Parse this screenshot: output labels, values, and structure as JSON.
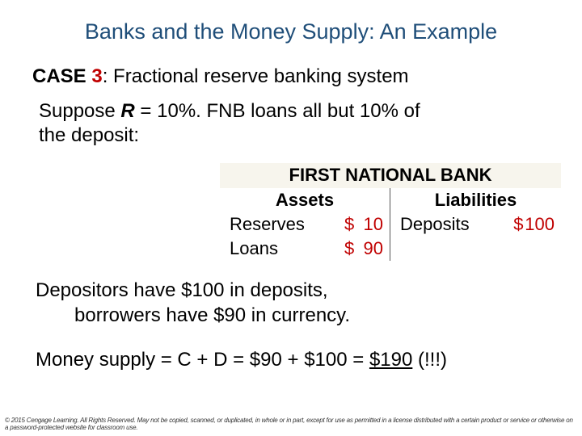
{
  "title": "Banks and the Money Supply: An Example",
  "case": {
    "label": "CASE ",
    "num": "3",
    "colon": ":",
    "desc": "  Fractional reserve banking system"
  },
  "suppose": {
    "pre": "Suppose ",
    "R": "R",
    "post": " = 10%.  FNB loans all but 10% of the deposit:"
  },
  "balance_sheet": {
    "title": "FIRST NATIONAL BANK",
    "assets_head": "Assets",
    "liab_head": "Liabilities",
    "rows": [
      {
        "asset_label": "Reserves",
        "asset_amount": "10",
        "liab_label": "Deposits",
        "liab_amount": "100"
      },
      {
        "asset_label": "Loans",
        "asset_amount": "90",
        "liab_label": "",
        "liab_amount": ""
      }
    ]
  },
  "depositors": {
    "line1": "Depositors have $100 in deposits,",
    "line2": "borrowers have $90 in currency."
  },
  "money_supply": {
    "pre": "Money supply = C + D = $90 + $100 = ",
    "underlined": "$190",
    "post": " (!!!)"
  },
  "copyright": "© 2015 Cengage Learning. All Rights Reserved. May not be copied, scanned, or duplicated, in whole or in part, except for use as permitted in a license distributed with a certain product or service or otherwise on a password-protected website for classroom use.",
  "colors": {
    "title": "#1f4e79",
    "accent": "#c00000",
    "bs_bg": "#f7f5ed"
  }
}
